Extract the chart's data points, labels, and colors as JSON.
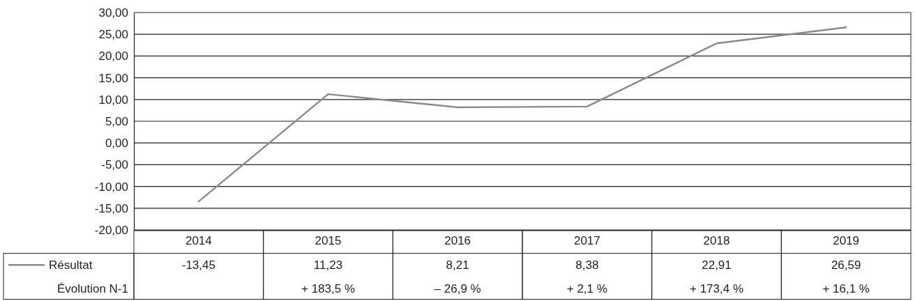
{
  "chart_data": {
    "type": "line",
    "categories": [
      "2014",
      "2015",
      "2016",
      "2017",
      "2018",
      "2019"
    ],
    "series": [
      {
        "name": "Résultat",
        "color": "#8a8a8a",
        "values": [
          -13.45,
          11.23,
          8.21,
          8.38,
          22.91,
          26.59
        ],
        "value_labels": [
          "-13,45",
          "11,23",
          "8,21",
          "8,38",
          "22,91",
          "26,59"
        ]
      }
    ],
    "ylim": [
      -20,
      30
    ],
    "yticks": [
      {
        "value": -20,
        "label": "-20,00"
      },
      {
        "value": -15,
        "label": "-15,00"
      },
      {
        "value": -10,
        "label": "-10,00"
      },
      {
        "value": -5,
        "label": "-5,00"
      },
      {
        "value": 0,
        "label": "0,00"
      },
      {
        "value": 5,
        "label": "5,00"
      },
      {
        "value": 10,
        "label": "10,00"
      },
      {
        "value": 15,
        "label": "15,00"
      },
      {
        "value": 20,
        "label": "20,00"
      },
      {
        "value": 25,
        "label": "25,00"
      },
      {
        "value": 30,
        "label": "30,00"
      }
    ],
    "grid": "y",
    "legend": "bottom left",
    "marker": "none",
    "annotations": [
      "Évolution N-1",
      "+ 183,5 %",
      "– 26,9 %",
      "+ 2,1 %",
      "+ 173,4 %",
      "+ 16,1 %"
    ]
  }
}
